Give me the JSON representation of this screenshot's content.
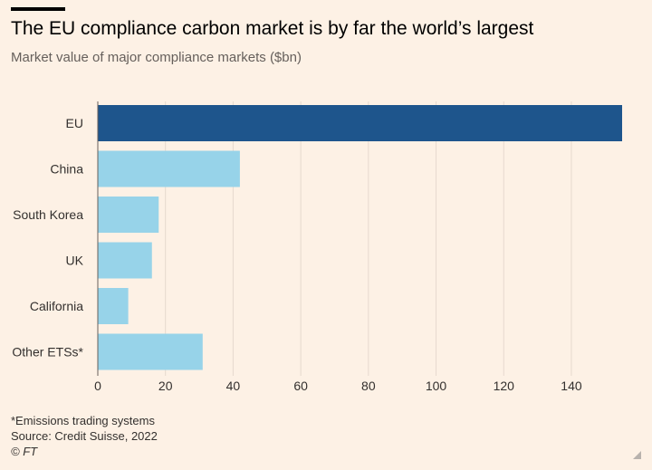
{
  "chart_data": {
    "type": "bar",
    "orientation": "horizontal",
    "title": "The EU compliance carbon market is by far the world’s largest",
    "subtitle": "Market value of major compliance markets ($bn)",
    "categories": [
      "EU",
      "China",
      "South Korea",
      "UK",
      "California",
      "Other ETSs*"
    ],
    "values": [
      155,
      42,
      18,
      16,
      9,
      31
    ],
    "xlim": [
      0,
      155
    ],
    "xticks": [
      0,
      20,
      40,
      60,
      80,
      100,
      120,
      140
    ],
    "grid": true,
    "colors": {
      "highlight": "#1e558c",
      "default": "#97d3e9",
      "grid": "#e6d9ce"
    }
  },
  "footer": {
    "note": "*Emissions trading systems",
    "source": "Source: Credit Suisse, 2022",
    "copyright": "© FT"
  }
}
